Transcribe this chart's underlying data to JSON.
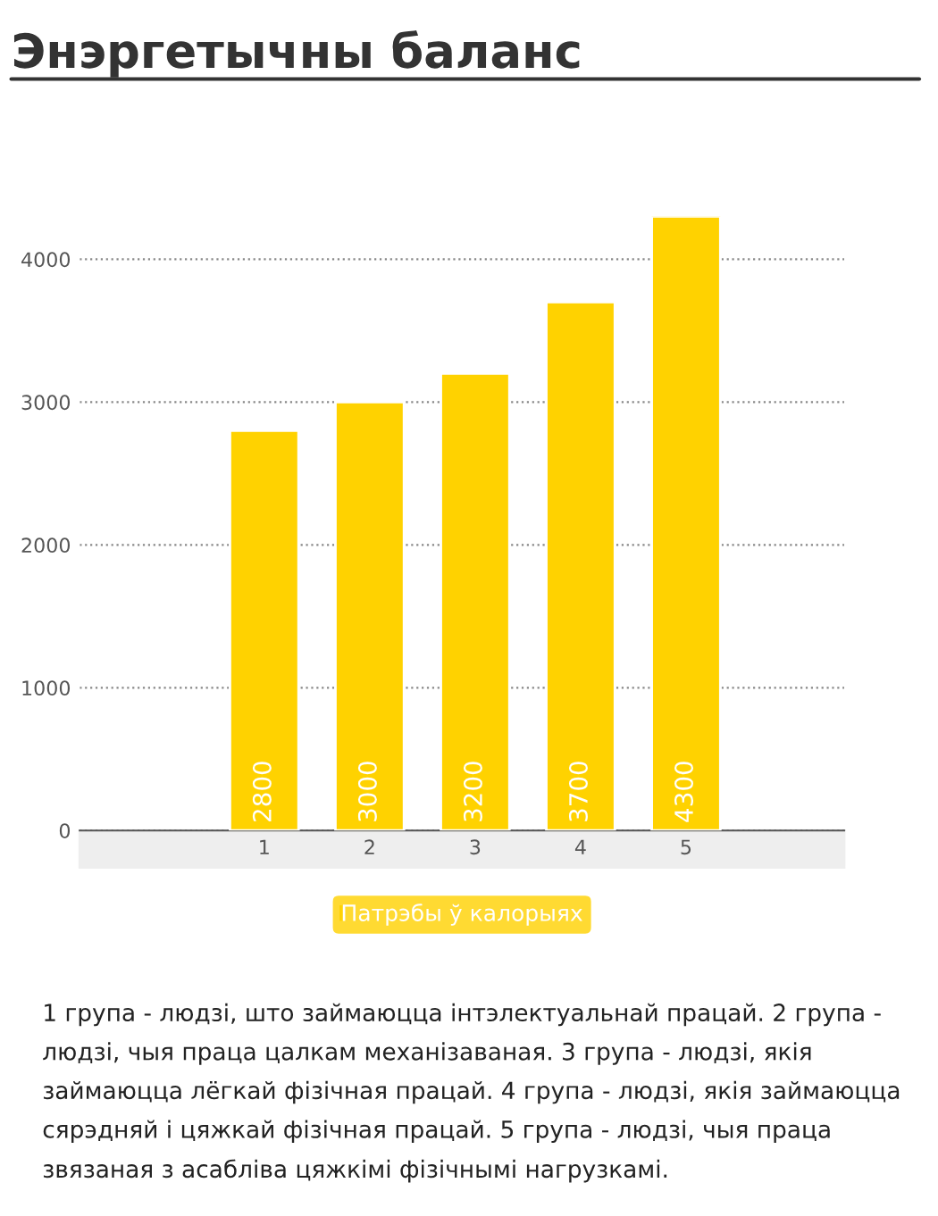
{
  "chart_data": {
    "type": "bar",
    "title": "Энэргетычны баланс",
    "categories": [
      "1",
      "2",
      "3",
      "4",
      "5"
    ],
    "series": [
      {
        "name": "Патрэбы ў калорыях",
        "color": "#ffd200",
        "values": [
          2800,
          3000,
          3200,
          3700,
          4300
        ]
      }
    ],
    "ylim": [
      0,
      4300
    ],
    "yticks": [
      0,
      1000,
      2000,
      3000,
      4000
    ],
    "grid": "y",
    "legend": "bottom",
    "data_labels": true,
    "annotations": [
      "1 група - людзі, што займаюцца інтэлектуальнай працай. 2 група - людзі, чыя праца цалкам механізаваная. 3 група - людзі, якія займаюцца лёгкай фізічная працай. 4 група - людзі, якія займаюцца сярэдняй і цяжкай фізічная працай. 5 група - людзі, чыя праца звязаная з асабліва цяжкімі фізічнымі нагрузкамі."
    ]
  }
}
